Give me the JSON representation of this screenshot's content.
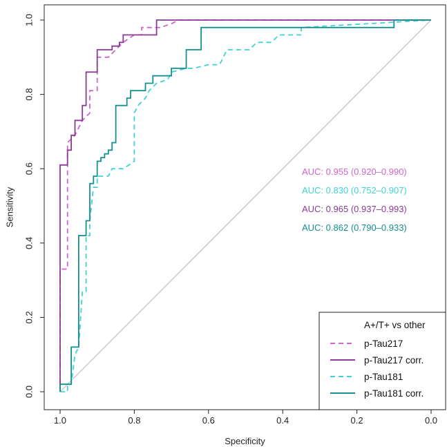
{
  "chart_data": {
    "type": "line",
    "title": "",
    "xlabel": "Specificity",
    "ylabel": "Sensitivity",
    "xlim": [
      1.0,
      0.0
    ],
    "ylim": [
      0.0,
      1.0
    ],
    "x_reversed": true,
    "x_ticks": [
      "1.0",
      "0.8",
      "0.6",
      "0.4",
      "0.2",
      "0.0"
    ],
    "y_ticks": [
      "0.0",
      "0.2",
      "0.4",
      "0.6",
      "0.8",
      "1.0"
    ],
    "reference_line": {
      "from": [
        1.0,
        0.0
      ],
      "to": [
        0.0,
        1.0
      ],
      "color": "#bdbdbd"
    },
    "legend": {
      "title": "A+/T+ vs other",
      "position": "bottom-right"
    },
    "auc_annotations": [
      {
        "text": "AUC: 0.955 (0.920–0.990)",
        "color": "#d063cf"
      },
      {
        "text": "AUC: 0.830 (0.752–0.907)",
        "color": "#3fd2d2"
      },
      {
        "text": "AUC: 0.965 (0.937–0.993)",
        "color": "#8b3a96"
      },
      {
        "text": "AUC: 0.862 (0.790–0.933)",
        "color": "#13908f"
      }
    ],
    "series": [
      {
        "name": "p-Tau217",
        "color": "#d063cf",
        "dash": "dashed",
        "points": [
          [
            1.0,
            0.0
          ],
          [
            1.0,
            0.33
          ],
          [
            0.98,
            0.33
          ],
          [
            0.98,
            0.67
          ],
          [
            0.96,
            0.69
          ],
          [
            0.94,
            0.73
          ],
          [
            0.92,
            0.75
          ],
          [
            0.92,
            0.81
          ],
          [
            0.9,
            0.81
          ],
          [
            0.9,
            0.9
          ],
          [
            0.87,
            0.9
          ],
          [
            0.85,
            0.92
          ],
          [
            0.83,
            0.94
          ],
          [
            0.8,
            0.96
          ],
          [
            0.78,
            0.96
          ],
          [
            0.78,
            0.98
          ],
          [
            0.73,
            0.98
          ],
          [
            0.7,
            0.99
          ],
          [
            0.68,
            1.0
          ],
          [
            0.0,
            1.0
          ]
        ]
      },
      {
        "name": "p-Tau217 corr.",
        "color": "#8b3a96",
        "dash": "solid",
        "points": [
          [
            1.0,
            0.0
          ],
          [
            1.0,
            0.61
          ],
          [
            0.98,
            0.61
          ],
          [
            0.98,
            0.65
          ],
          [
            0.97,
            0.65
          ],
          [
            0.97,
            0.69
          ],
          [
            0.96,
            0.69
          ],
          [
            0.96,
            0.73
          ],
          [
            0.94,
            0.73
          ],
          [
            0.94,
            0.77
          ],
          [
            0.93,
            0.77
          ],
          [
            0.93,
            0.86
          ],
          [
            0.9,
            0.86
          ],
          [
            0.9,
            0.92
          ],
          [
            0.86,
            0.92
          ],
          [
            0.86,
            0.93
          ],
          [
            0.84,
            0.93
          ],
          [
            0.84,
            0.94
          ],
          [
            0.83,
            0.94
          ],
          [
            0.83,
            0.96
          ],
          [
            0.79,
            0.96
          ],
          [
            0.79,
            0.96
          ],
          [
            0.74,
            0.96
          ],
          [
            0.74,
            1.0
          ],
          [
            0.0,
            1.0
          ]
        ]
      },
      {
        "name": "p-Tau181",
        "color": "#3fd2d2",
        "dash": "dashed",
        "points": [
          [
            1.0,
            0.0
          ],
          [
            0.98,
            0.0
          ],
          [
            0.98,
            0.02
          ],
          [
            0.97,
            0.02
          ],
          [
            0.96,
            0.1
          ],
          [
            0.95,
            0.12
          ],
          [
            0.94,
            0.27
          ],
          [
            0.93,
            0.27
          ],
          [
            0.93,
            0.42
          ],
          [
            0.92,
            0.42
          ],
          [
            0.92,
            0.46
          ],
          [
            0.91,
            0.55
          ],
          [
            0.9,
            0.55
          ],
          [
            0.9,
            0.58
          ],
          [
            0.87,
            0.58
          ],
          [
            0.86,
            0.6
          ],
          [
            0.83,
            0.6
          ],
          [
            0.8,
            0.62
          ],
          [
            0.8,
            0.75
          ],
          [
            0.79,
            0.77
          ],
          [
            0.77,
            0.79
          ],
          [
            0.76,
            0.81
          ],
          [
            0.74,
            0.83
          ],
          [
            0.71,
            0.84
          ],
          [
            0.7,
            0.86
          ],
          [
            0.66,
            0.87
          ],
          [
            0.64,
            0.87
          ],
          [
            0.6,
            0.88
          ],
          [
            0.57,
            0.88
          ],
          [
            0.55,
            0.92
          ],
          [
            0.49,
            0.92
          ],
          [
            0.47,
            0.94
          ],
          [
            0.43,
            0.94
          ],
          [
            0.41,
            0.96
          ],
          [
            0.35,
            0.96
          ],
          [
            0.35,
            0.98
          ],
          [
            0.0,
            1.0
          ]
        ]
      },
      {
        "name": "p-Tau181 corr.",
        "color": "#13908f",
        "dash": "solid",
        "points": [
          [
            1.0,
            0.0
          ],
          [
            1.0,
            0.02
          ],
          [
            0.97,
            0.02
          ],
          [
            0.97,
            0.12
          ],
          [
            0.95,
            0.12
          ],
          [
            0.95,
            0.42
          ],
          [
            0.93,
            0.42
          ],
          [
            0.93,
            0.46
          ],
          [
            0.92,
            0.46
          ],
          [
            0.92,
            0.56
          ],
          [
            0.91,
            0.56
          ],
          [
            0.91,
            0.58
          ],
          [
            0.9,
            0.58
          ],
          [
            0.9,
            0.62
          ],
          [
            0.89,
            0.62
          ],
          [
            0.89,
            0.63
          ],
          [
            0.88,
            0.63
          ],
          [
            0.88,
            0.64
          ],
          [
            0.87,
            0.64
          ],
          [
            0.87,
            0.65
          ],
          [
            0.86,
            0.65
          ],
          [
            0.86,
            0.67
          ],
          [
            0.85,
            0.67
          ],
          [
            0.85,
            0.77
          ],
          [
            0.82,
            0.77
          ],
          [
            0.82,
            0.79
          ],
          [
            0.81,
            0.79
          ],
          [
            0.81,
            0.81
          ],
          [
            0.77,
            0.81
          ],
          [
            0.77,
            0.83
          ],
          [
            0.75,
            0.83
          ],
          [
            0.75,
            0.85
          ],
          [
            0.7,
            0.85
          ],
          [
            0.7,
            0.87
          ],
          [
            0.66,
            0.87
          ],
          [
            0.66,
            0.92
          ],
          [
            0.62,
            0.92
          ],
          [
            0.62,
            0.98
          ],
          [
            0.1,
            0.98
          ],
          [
            0.1,
            1.0
          ],
          [
            0.0,
            1.0
          ]
        ]
      }
    ]
  }
}
